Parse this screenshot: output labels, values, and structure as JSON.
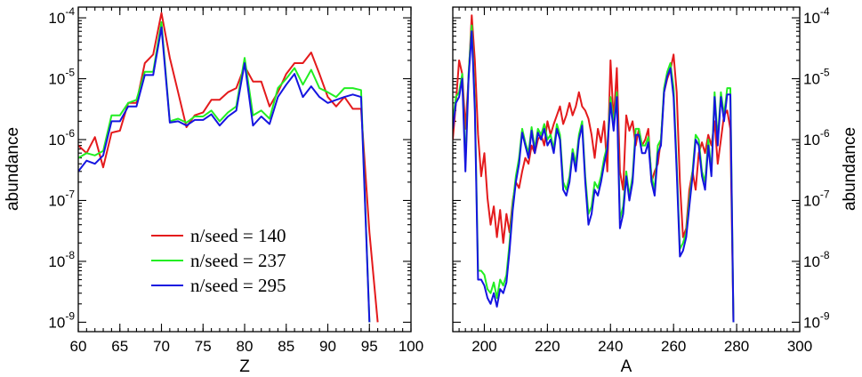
{
  "chart_data": [
    {
      "type": "line",
      "xlabel": "Z",
      "ylabel": "abundance",
      "yscale": "log",
      "xlim": [
        60,
        100
      ],
      "ylim": [
        7e-10,
        0.00015
      ],
      "xticks": [
        60,
        65,
        70,
        75,
        80,
        85,
        90,
        95,
        100
      ],
      "ytick_mantissa": "10",
      "ytick_exponents": [
        "-9",
        "-8",
        "-7",
        "-6",
        "-5",
        "-4"
      ],
      "legend_position": "lower-left",
      "series": [
        {
          "name": "n/seed = 140",
          "color": "#e41a1c",
          "x": [
            60,
            61,
            62,
            63,
            64,
            65,
            66,
            67,
            68,
            69,
            70,
            71,
            72,
            73,
            74,
            75,
            76,
            77,
            78,
            79,
            80,
            81,
            82,
            83,
            84,
            85,
            86,
            87,
            88,
            89,
            90,
            91,
            92,
            93,
            94,
            95,
            96
          ],
          "y": [
            8e-07,
            6e-07,
            1.1e-06,
            3.5e-07,
            1.3e-06,
            1.4e-06,
            4e-06,
            4e-06,
            1.8e-05,
            2.5e-05,
            0.00012,
            2.2e-05,
            6e-06,
            1.6e-06,
            2.5e-06,
            2.8e-06,
            4.5e-06,
            4.5e-06,
            6e-06,
            7e-06,
            1.6e-05,
            9e-06,
            9e-06,
            3.5e-06,
            6e-06,
            1.2e-05,
            1.8e-05,
            1.8e-05,
            2.7e-05,
            1.2e-05,
            5e-06,
            3.5e-06,
            5e-06,
            3.2e-06,
            3.2e-06,
            3e-08,
            1e-09
          ]
        },
        {
          "name": "n/seed = 237",
          "color": "#22ee22",
          "x": [
            60,
            61,
            62,
            63,
            64,
            65,
            66,
            67,
            68,
            69,
            70,
            71,
            72,
            73,
            74,
            75,
            76,
            77,
            78,
            79,
            80,
            81,
            82,
            83,
            84,
            85,
            86,
            87,
            88,
            89,
            90,
            91,
            92,
            93,
            94,
            95
          ],
          "y": [
            5e-07,
            6e-07,
            5.5e-07,
            6.5e-07,
            2.5e-06,
            2.5e-06,
            4e-06,
            4.5e-06,
            1.3e-05,
            1.3e-05,
            8.5e-05,
            2e-06,
            2.2e-06,
            1.9e-06,
            2.4e-06,
            2.4e-06,
            3e-06,
            2e-06,
            2.8e-06,
            3.5e-06,
            2.2e-05,
            2.5e-06,
            3e-06,
            2.2e-06,
            7e-06,
            1e-05,
            1.5e-05,
            8e-06,
            1.4e-05,
            7e-06,
            6e-06,
            5e-06,
            7e-06,
            7e-06,
            6.5e-06,
            1e-09
          ]
        },
        {
          "name": "n/seed = 295",
          "color": "#1515e0",
          "x": [
            60,
            61,
            62,
            63,
            64,
            65,
            66,
            67,
            68,
            69,
            70,
            71,
            72,
            73,
            74,
            75,
            76,
            77,
            78,
            79,
            80,
            81,
            82,
            83,
            84,
            85,
            86,
            87,
            88,
            89,
            90,
            91,
            92,
            93,
            94,
            95
          ],
          "y": [
            3e-07,
            4.5e-07,
            4e-07,
            5.5e-07,
            2e-06,
            2e-06,
            3.5e-06,
            3.5e-06,
            1.15e-05,
            1.15e-05,
            7e-05,
            1.9e-06,
            2e-06,
            1.7e-06,
            2.1e-06,
            2.1e-06,
            2.6e-06,
            1.7e-06,
            2.4e-06,
            3e-06,
            1.8e-05,
            1.7e-06,
            2.4e-06,
            1.8e-06,
            5e-06,
            8e-06,
            1.2e-05,
            5e-06,
            7.5e-06,
            5e-06,
            4e-06,
            4.5e-06,
            5e-06,
            5.5e-06,
            5e-06,
            1e-09
          ]
        }
      ]
    },
    {
      "type": "line",
      "xlabel": "A",
      "ylabel": "abundance",
      "yscale": "log",
      "xlim": [
        190,
        300
      ],
      "ylim": [
        7e-10,
        0.00015
      ],
      "xticks": [
        200,
        220,
        240,
        260,
        280,
        300
      ],
      "ytick_mantissa": "10",
      "ytick_exponents": [
        "-9",
        "-8",
        "-7",
        "-6",
        "-5",
        "-4"
      ],
      "series": [
        {
          "name": "n/seed = 140",
          "color": "#e41a1c",
          "x": [
            190,
            191,
            192,
            193,
            194,
            195,
            196,
            197,
            198,
            199,
            200,
            201,
            202,
            203,
            204,
            205,
            206,
            207,
            208,
            209,
            210,
            211,
            212,
            213,
            214,
            215,
            216,
            217,
            218,
            219,
            220,
            221,
            222,
            223,
            224,
            225,
            226,
            227,
            228,
            229,
            230,
            231,
            232,
            233,
            234,
            235,
            236,
            237,
            238,
            239,
            240,
            241,
            242,
            243,
            244,
            245,
            246,
            247,
            248,
            249,
            250,
            251,
            252,
            253,
            254,
            255,
            256,
            257,
            258,
            259,
            260,
            261,
            262,
            263,
            264,
            265,
            266,
            267,
            268,
            269,
            270,
            271,
            272,
            273,
            274,
            275,
            276,
            277,
            278,
            279
          ],
          "y": [
            1e-06,
            4e-06,
            2e-05,
            1.2e-05,
            1.5e-06,
            1e-05,
            0.00011,
            2e-05,
            1.2e-06,
            2.5e-07,
            6e-07,
            1.1e-07,
            4e-08,
            8e-08,
            2.5e-08,
            7e-08,
            2e-08,
            6e-08,
            3e-08,
            1e-07,
            2e-07,
            1.6e-07,
            3e-07,
            5e-07,
            4e-07,
            8e-07,
            6e-07,
            1e-06,
            1.2e-06,
            8e-07,
            2e-06,
            1.2e-06,
            1.8e-06,
            2.5e-06,
            3.5e-06,
            1.8e-06,
            2.5e-06,
            4e-06,
            2.5e-06,
            3.5e-06,
            6e-06,
            3.5e-06,
            3e-06,
            2.2e-06,
            1.2e-06,
            5e-07,
            1.5e-06,
            9e-07,
            2e-06,
            3e-07,
            2e-05,
            2e-06,
            1.5e-05,
            3e-07,
            1.5e-07,
            2.5e-06,
            1.4e-06,
            2e-06,
            8e-07,
            1.5e-06,
            8e-07,
            1e-06,
            1.5e-06,
            2e-07,
            3e-07,
            4e-07,
            1e-06,
            6e-06,
            1e-05,
            1.4e-05,
            2.5e-05,
            6e-06,
            2e-07,
            2.5e-08,
            3.5e-08,
            1.5e-07,
            3e-07,
            1.5e-07,
            6e-07,
            9e-07,
            6e-07,
            1.2e-06,
            8e-07,
            2e-06,
            4e-07,
            1e-06,
            2.5e-06,
            3e-06,
            1.5e-06,
            1e-09
          ]
        },
        {
          "name": "n/seed = 237",
          "color": "#22ee22",
          "x": [
            190,
            191,
            192,
            193,
            194,
            195,
            196,
            197,
            198,
            199,
            200,
            201,
            202,
            203,
            204,
            205,
            206,
            207,
            208,
            209,
            210,
            211,
            212,
            213,
            214,
            215,
            216,
            217,
            218,
            219,
            220,
            221,
            222,
            223,
            224,
            225,
            226,
            227,
            228,
            229,
            230,
            231,
            232,
            233,
            234,
            235,
            236,
            237,
            238,
            239,
            240,
            241,
            242,
            243,
            244,
            245,
            246,
            247,
            248,
            249,
            250,
            251,
            252,
            253,
            254,
            255,
            256,
            257,
            258,
            259,
            260,
            261,
            262,
            263,
            264,
            265,
            266,
            267,
            268,
            269,
            270,
            271,
            272,
            273,
            274,
            275,
            276,
            277,
            278,
            279
          ],
          "y": [
            2e-06,
            5e-06,
            6e-06,
            1.2e-05,
            4e-07,
            1.2e-05,
            7.5e-05,
            4e-06,
            7e-09,
            7e-09,
            6e-09,
            3.5e-09,
            3e-09,
            4.5e-09,
            2.5e-09,
            5e-09,
            4e-09,
            6e-09,
            2e-08,
            9e-08,
            2.5e-07,
            5e-07,
            1.5e-06,
            9e-07,
            6e-07,
            1.6e-06,
            7e-07,
            1.5e-06,
            1.2e-06,
            1.8e-06,
            1e-06,
            1.2e-06,
            7e-07,
            1.8e-06,
            1.2e-06,
            2e-07,
            1.5e-07,
            2.5e-07,
            7e-07,
            4e-07,
            1.2e-06,
            2e-06,
            2.5e-07,
            6e-08,
            8e-08,
            2e-07,
            1.6e-07,
            2.5e-07,
            5e-07,
            8e-07,
            5e-06,
            1.8e-06,
            6e-06,
            5e-08,
            8e-08,
            3e-07,
            1.2e-07,
            2.5e-07,
            1.5e-06,
            1.5e-06,
            8e-07,
            8e-07,
            1.1e-06,
            2.5e-07,
            1.5e-07,
            8e-07,
            1e-06,
            7e-06,
            1.3e-05,
            1.8e-05,
            7e-06,
            4e-07,
            1.6e-08,
            2e-08,
            3e-08,
            1e-07,
            3e-07,
            1.2e-06,
            1e-06,
            3e-07,
            2e-07,
            1e-06,
            3e-07,
            6e-06,
            1e-06,
            6e-06,
            2.5e-06,
            7e-06,
            7e-06,
            1e-09
          ]
        },
        {
          "name": "n/seed = 295",
          "color": "#1515e0",
          "x": [
            190,
            191,
            192,
            193,
            194,
            195,
            196,
            197,
            198,
            199,
            200,
            201,
            202,
            203,
            204,
            205,
            206,
            207,
            208,
            209,
            210,
            211,
            212,
            213,
            214,
            215,
            216,
            217,
            218,
            219,
            220,
            221,
            222,
            223,
            224,
            225,
            226,
            227,
            228,
            229,
            230,
            231,
            232,
            233,
            234,
            235,
            236,
            237,
            238,
            239,
            240,
            241,
            242,
            243,
            244,
            245,
            246,
            247,
            248,
            249,
            250,
            251,
            252,
            253,
            254,
            255,
            256,
            257,
            258,
            259,
            260,
            261,
            262,
            263,
            264,
            265,
            266,
            267,
            268,
            269,
            270,
            271,
            272,
            273,
            274,
            275,
            276,
            277,
            278,
            279
          ],
          "y": [
            1.5e-06,
            4e-06,
            5e-06,
            1e-05,
            3e-07,
            1e-05,
            6e-05,
            3e-06,
            5e-09,
            5e-09,
            4e-09,
            2.5e-09,
            2e-09,
            3e-09,
            1.8e-09,
            3.5e-09,
            3e-09,
            4.5e-09,
            1.5e-08,
            7e-08,
            2e-07,
            4e-07,
            1.3e-06,
            8e-07,
            5e-07,
            1.4e-06,
            6e-07,
            1.3e-06,
            1e-06,
            1.5e-06,
            8e-07,
            1e-06,
            6e-07,
            1.5e-06,
            1e-06,
            1.5e-07,
            1.2e-07,
            2e-07,
            6e-07,
            3e-07,
            1e-06,
            1.7e-06,
            2e-07,
            4e-08,
            6e-08,
            1.5e-07,
            1.2e-07,
            2e-07,
            4e-07,
            7e-07,
            4e-06,
            1.4e-06,
            5e-06,
            3.5e-08,
            6e-08,
            2.5e-07,
            1e-07,
            2e-07,
            1.2e-06,
            1.2e-06,
            6e-07,
            6e-07,
            9e-07,
            2e-07,
            1.2e-07,
            6e-07,
            8e-07,
            6e-06,
            1.1e-05,
            1.5e-05,
            5e-06,
            3e-07,
            1.2e-08,
            1.5e-08,
            2.5e-08,
            8e-08,
            2.5e-07,
            1e-06,
            8e-07,
            2.5e-07,
            1.5e-07,
            8e-07,
            2.5e-07,
            5e-06,
            8e-07,
            5e-06,
            2e-06,
            5.5e-06,
            5.5e-06,
            1e-09
          ]
        }
      ]
    }
  ]
}
